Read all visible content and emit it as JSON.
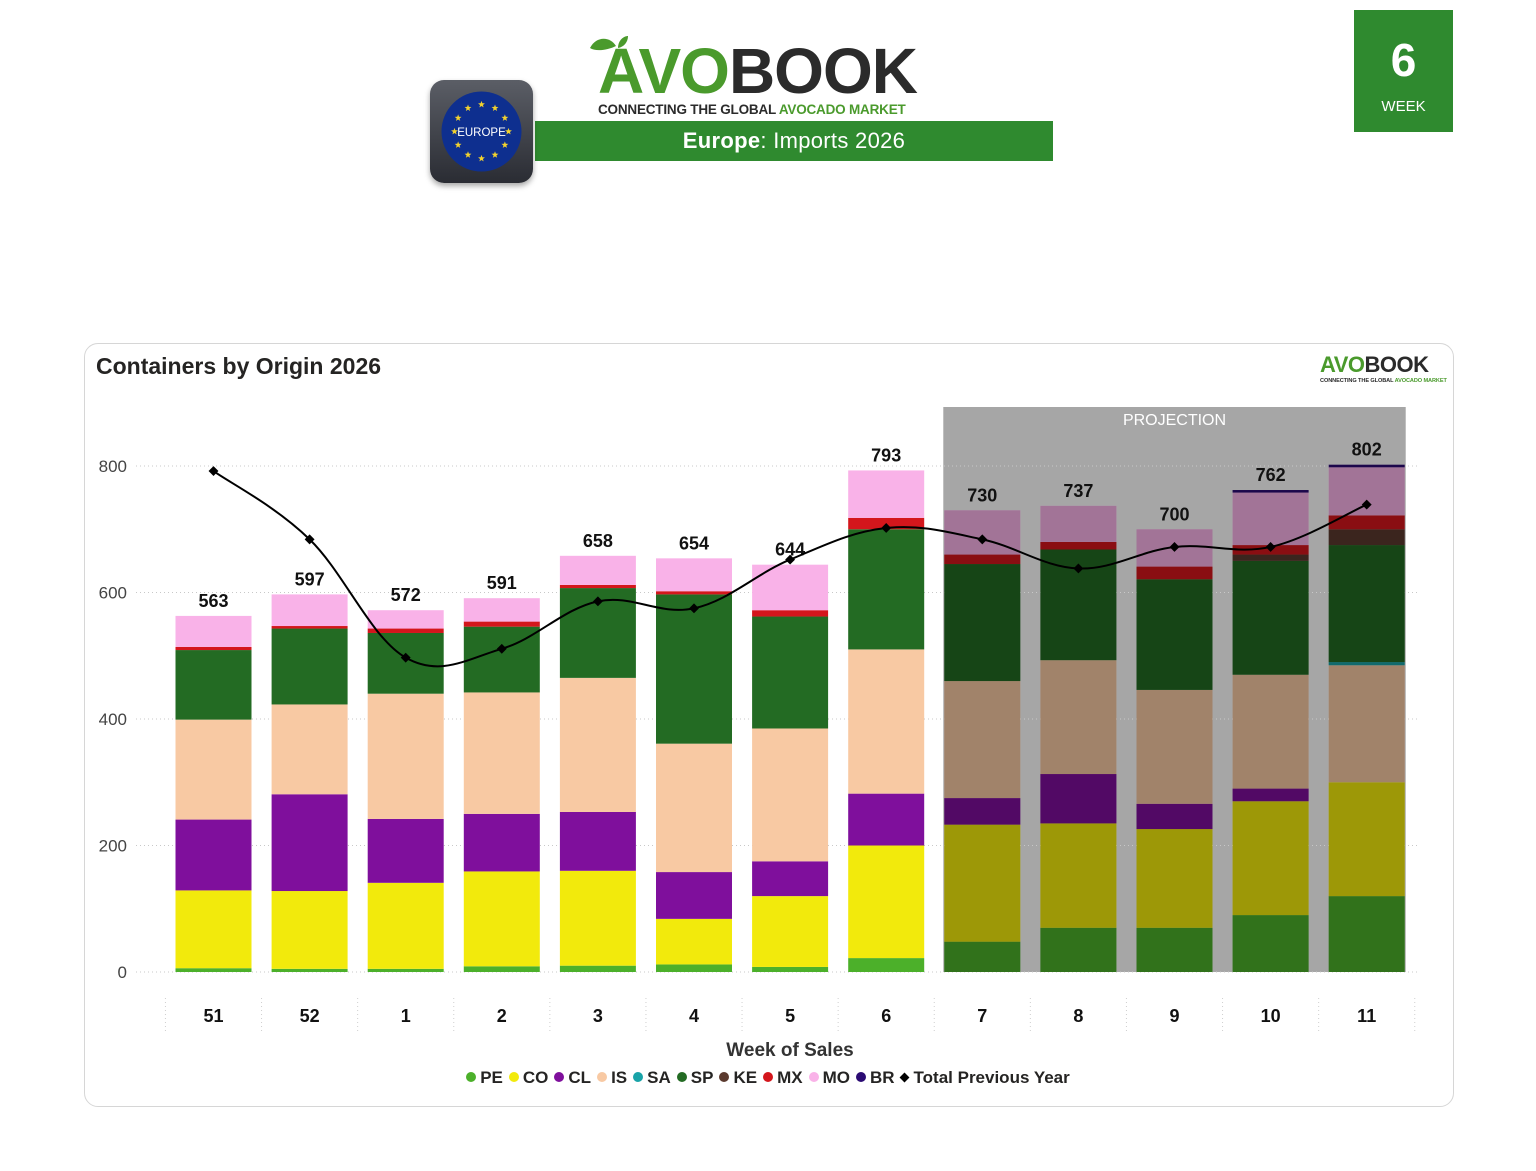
{
  "header": {
    "logo_avo": "AVO",
    "logo_book": "BOOK",
    "tagline_part1": "CONNECTING THE GLOBAL ",
    "tagline_part2": "AVOCADO MARKET",
    "banner_region": "Europe",
    "banner_rest": ": Imports 2026",
    "flag_label": "EUROPE",
    "week_number": "6",
    "week_label": "WEEK"
  },
  "colors": {
    "brand_green": "#2f8a2f",
    "PE": "#4cb02a",
    "CO": "#f2ea0c",
    "CL": "#7f0f9c",
    "IS": "#f8c9a3",
    "SA": "#19a3a8",
    "SP": "#236b23",
    "KE": "#5b3a2e",
    "MX": "#d4161c",
    "MO": "#f9b2e8",
    "BR": "#2b0b73",
    "projection": "#a6a6a6"
  },
  "chart_data": {
    "type": "bar",
    "title": "Containers by Origin 2026",
    "xlabel": "Week of Sales",
    "ylabel": "",
    "ylim": [
      0,
      900
    ],
    "yticks": [
      0,
      200,
      400,
      600,
      800
    ],
    "grid": true,
    "legend_position": "bottom",
    "projection_label": "PROJECTION",
    "projection_start_category": "7",
    "categories": [
      "51",
      "52",
      "1",
      "2",
      "3",
      "4",
      "5",
      "6",
      "7",
      "8",
      "9",
      "10",
      "11"
    ],
    "totals": [
      563,
      597,
      572,
      591,
      658,
      654,
      644,
      793,
      730,
      737,
      700,
      762,
      802
    ],
    "series": [
      {
        "name": "PE",
        "values": [
          6,
          5,
          5,
          9,
          10,
          12,
          8,
          22,
          48,
          70,
          70,
          90,
          120
        ]
      },
      {
        "name": "CO",
        "values": [
          123,
          123,
          136,
          150,
          150,
          72,
          112,
          178,
          185,
          165,
          156,
          180,
          180
        ]
      },
      {
        "name": "CL",
        "values": [
          112,
          153,
          101,
          91,
          93,
          74,
          55,
          82,
          42,
          78,
          40,
          20,
          0
        ]
      },
      {
        "name": "IS",
        "values": [
          158,
          142,
          198,
          192,
          212,
          203,
          210,
          228,
          185,
          180,
          180,
          180,
          185
        ]
      },
      {
        "name": "SA",
        "values": [
          0,
          0,
          0,
          0,
          0,
          0,
          0,
          0,
          0,
          0,
          0,
          0,
          5
        ]
      },
      {
        "name": "SP",
        "values": [
          110,
          120,
          96,
          104,
          142,
          236,
          177,
          190,
          185,
          175,
          175,
          180,
          185
        ]
      },
      {
        "name": "KE",
        "values": [
          0,
          0,
          0,
          0,
          0,
          0,
          0,
          0,
          0,
          0,
          0,
          10,
          25
        ]
      },
      {
        "name": "MX",
        "values": [
          5,
          4,
          7,
          8,
          5,
          5,
          10,
          18,
          15,
          12,
          20,
          15,
          22
        ]
      },
      {
        "name": "MO",
        "values": [
          49,
          50,
          29,
          37,
          46,
          52,
          72,
          75,
          70,
          57,
          59,
          83,
          76
        ]
      },
      {
        "name": "BR",
        "values": [
          0,
          0,
          0,
          0,
          0,
          0,
          0,
          0,
          0,
          0,
          0,
          4,
          4
        ]
      }
    ],
    "line_series": {
      "name": "Total Previous Year",
      "values": [
        792,
        684,
        497,
        511,
        586,
        575,
        652,
        702,
        684,
        638,
        672,
        672,
        739
      ]
    }
  }
}
